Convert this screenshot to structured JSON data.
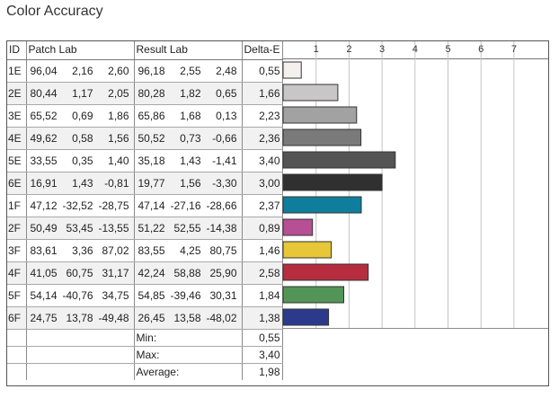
{
  "title": "Color Accuracy",
  "table": {
    "headers": {
      "id": "ID",
      "patch": "Patch Lab",
      "result": "Result Lab",
      "delta": "Delta-E"
    },
    "rows": [
      {
        "id": "1E",
        "patch": [
          "96,04",
          "2,16",
          "2,60"
        ],
        "result": [
          "96,18",
          "2,55",
          "2,48"
        ],
        "de": "0,55",
        "color": "#f3f0ee"
      },
      {
        "id": "2E",
        "patch": [
          "80,44",
          "1,17",
          "2,05"
        ],
        "result": [
          "80,28",
          "1,82",
          "0,65"
        ],
        "de": "1,66",
        "color": "#c8c6c6"
      },
      {
        "id": "3E",
        "patch": [
          "65,52",
          "0,69",
          "1,86"
        ],
        "result": [
          "65,86",
          "1,68",
          "0,13"
        ],
        "de": "2,23",
        "color": "#a3a2a2"
      },
      {
        "id": "4E",
        "patch": [
          "49,62",
          "0,58",
          "1,56"
        ],
        "result": [
          "50,52",
          "0,73",
          "-0,66"
        ],
        "de": "2,36",
        "color": "#7a7a7a"
      },
      {
        "id": "5E",
        "patch": [
          "33,55",
          "0,35",
          "1,40"
        ],
        "result": [
          "35,18",
          "1,43",
          "-1,41"
        ],
        "de": "3,40",
        "color": "#545454"
      },
      {
        "id": "6E",
        "patch": [
          "16,91",
          "1,43",
          "-0,81"
        ],
        "result": [
          "19,77",
          "1,56",
          "-3,30"
        ],
        "de": "3,00",
        "color": "#303031"
      },
      {
        "id": "1F",
        "patch": [
          "47,12",
          "-32,52",
          "-28,75"
        ],
        "result": [
          "47,14",
          "-27,16",
          "-28,66"
        ],
        "de": "2,37",
        "color": "#0f7e9d"
      },
      {
        "id": "2F",
        "patch": [
          "50,49",
          "53,45",
          "-13,55"
        ],
        "result": [
          "51,22",
          "52,55",
          "-14,38"
        ],
        "de": "0,89",
        "color": "#b64f94"
      },
      {
        "id": "3F",
        "patch": [
          "83,61",
          "3,36",
          "87,02"
        ],
        "result": [
          "83,55",
          "4,25",
          "80,75"
        ],
        "de": "1,46",
        "color": "#e7c638"
      },
      {
        "id": "4F",
        "patch": [
          "41,05",
          "60,75",
          "31,17"
        ],
        "result": [
          "42,24",
          "58,88",
          "25,90"
        ],
        "de": "2,58",
        "color": "#b52d3f"
      },
      {
        "id": "5F",
        "patch": [
          "54,14",
          "-40,76",
          "34,75"
        ],
        "result": [
          "54,85",
          "-39,46",
          "30,31"
        ],
        "de": "1,84",
        "color": "#539557"
      },
      {
        "id": "6F",
        "patch": [
          "24,75",
          "13,78",
          "-49,48"
        ],
        "result": [
          "26,45",
          "13,58",
          "-48,02"
        ],
        "de": "1,38",
        "color": "#2c3a8d"
      }
    ],
    "stats": [
      {
        "label": "Min:",
        "value": "0,55"
      },
      {
        "label": "Max:",
        "value": "3,40"
      },
      {
        "label": "Average:",
        "value": "1,98"
      }
    ]
  },
  "chart_data": {
    "type": "bar",
    "orientation": "horizontal",
    "categories": [
      "1E",
      "2E",
      "3E",
      "4E",
      "5E",
      "6E",
      "1F",
      "2F",
      "3F",
      "4F",
      "5F",
      "6F"
    ],
    "values": [
      0.55,
      1.66,
      2.23,
      2.36,
      3.4,
      3.0,
      2.37,
      0.89,
      1.46,
      2.58,
      1.84,
      1.38
    ],
    "bar_colors": [
      "#f3f0ee",
      "#c8c6c6",
      "#a3a2a2",
      "#7a7a7a",
      "#545454",
      "#303031",
      "#0f7e9d",
      "#b64f94",
      "#e7c638",
      "#b52d3f",
      "#539557",
      "#2c3a8d"
    ],
    "xticks": [
      "1",
      "2",
      "3",
      "4",
      "5",
      "6",
      "7"
    ],
    "xlim": [
      0,
      8
    ],
    "grid": true
  }
}
